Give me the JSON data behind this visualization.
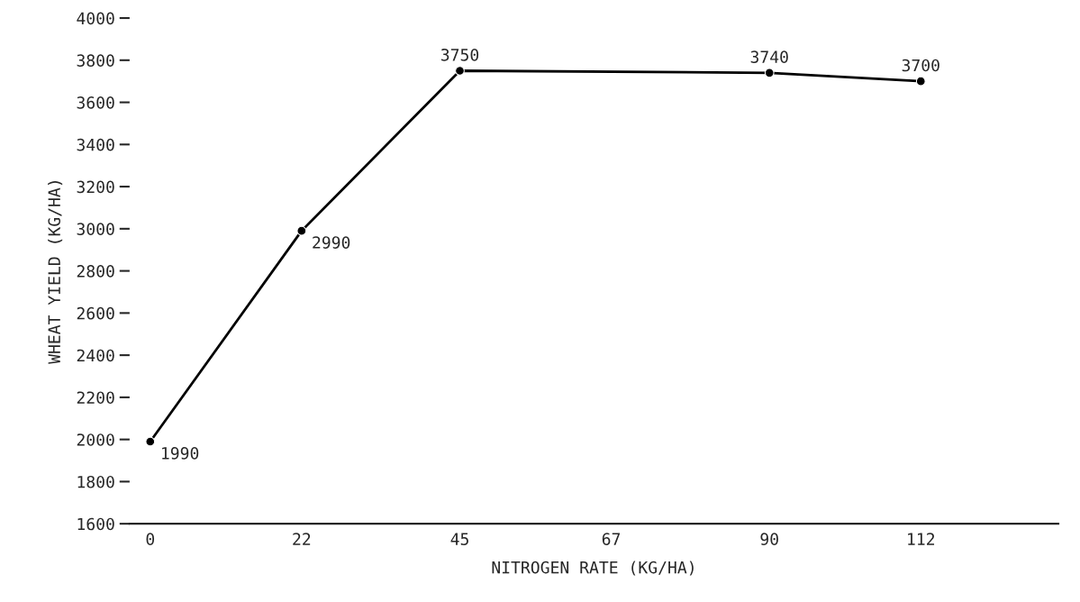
{
  "chart_data": {
    "type": "line",
    "xlabel": "NITROGEN RATE (KG/HA)",
    "ylabel": "WHEAT YIELD (KG/HA)",
    "x": [
      0,
      22,
      45,
      90,
      112
    ],
    "series": [
      {
        "color": "#000000",
        "values": [
          1990,
          2990,
          3750,
          3740,
          3700
        ]
      }
    ],
    "data_labels": true,
    "marker": "circle",
    "line_style": "solid",
    "grid": false,
    "legend": false,
    "xlim": [
      -3,
      132
    ],
    "xticks": [
      0,
      22,
      45,
      67,
      90,
      112
    ],
    "ylim": [
      1600,
      4000
    ],
    "yticks": [
      1600,
      1800,
      2000,
      2200,
      2400,
      2600,
      2800,
      3000,
      3200,
      3400,
      3600,
      3800,
      4000
    ]
  }
}
